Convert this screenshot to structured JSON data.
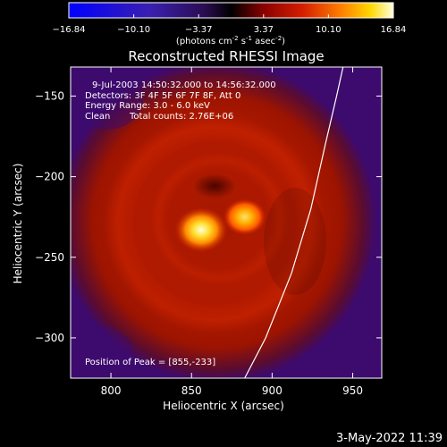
{
  "chart_data": {
    "type": "heatmap",
    "title": "Reconstructed RHESSI Image",
    "xlabel": "Heliocentric X (arcsec)",
    "ylabel": "Heliocentric Y (arcsec)",
    "xlim": [
      775,
      968
    ],
    "ylim": [
      -325,
      -132
    ],
    "x_ticks": [
      "800",
      "850",
      "900",
      "950"
    ],
    "y_ticks": [
      "-150",
      "-200",
      "-250",
      "-300"
    ],
    "colorbar": {
      "tick_labels": [
        "-16.84",
        "-10.10",
        "-3.37",
        "3.37",
        "10.10",
        "16.84"
      ],
      "range": [
        -16.84,
        16.84
      ],
      "units_label": "(photons cm",
      "units_sup1": "-2",
      "units_mid": " s",
      "units_sup2": "-1",
      "units_mid2": " asec",
      "units_sup3": "-2",
      "units_end": ")"
    },
    "info": {
      "time_range": "9-Jul-2003 14:50:32.000 to 14:56:32.000",
      "detectors": "Detectors: 3F 4F 5F 6F 7F 8F, Att 0",
      "energy_range": "Energy Range: 3.0 - 6.0 keV",
      "algorithm": "Clean",
      "total_counts": "Total counts: 2.76E+06"
    },
    "peak_text": "Position of Peak = [855,-233]",
    "peak": [
      855,
      -233
    ],
    "sources": [
      {
        "x": 856,
        "y": -233,
        "intensity": 16.84
      },
      {
        "x": 883,
        "y": -225,
        "intensity": 13.5
      }
    ],
    "limb_line": [
      [
        883,
        -325
      ],
      [
        896,
        -300
      ],
      [
        912,
        -260
      ],
      [
        924,
        -220
      ],
      [
        933,
        -180
      ],
      [
        940,
        -150
      ],
      [
        944,
        -132
      ]
    ],
    "colors": {
      "low": "#3d0a6e",
      "mid": "#c41c00",
      "high": "#ffffe0",
      "colorbar_stops": [
        "#0000ff",
        "#4a1fb8",
        "#5a1a9a",
        "#000000",
        "#7a0000",
        "#d41e00",
        "#ff7a00",
        "#ffd400",
        "#ffffd8"
      ]
    }
  },
  "footer_timestamp": "3-May-2022 11:39"
}
